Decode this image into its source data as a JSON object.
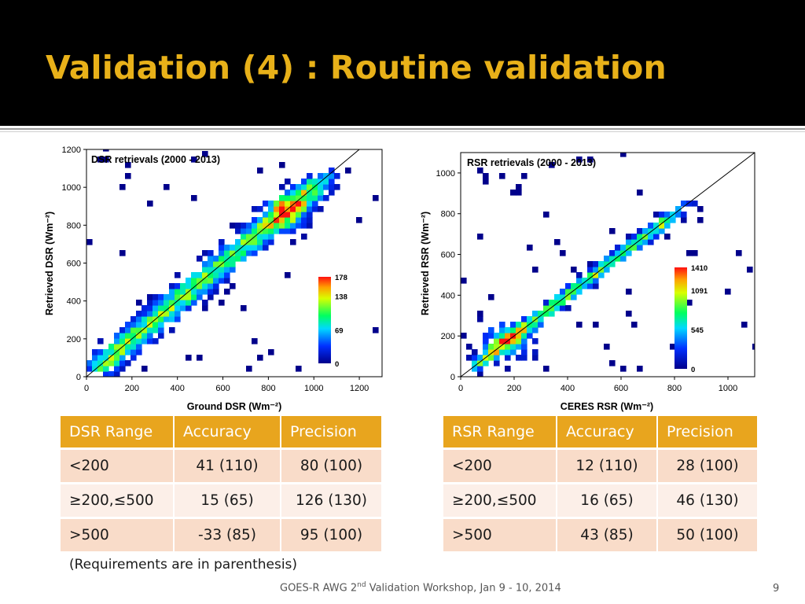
{
  "slide": {
    "title": "Validation (4) : Routine validation",
    "note": "(Requirements are in parenthesis)",
    "footer_pre": "GOES-R AWG 2",
    "footer_sup": "nd",
    "footer_post": " Validation Workshop, Jan 9 - 10, 2014",
    "page_number": "9"
  },
  "chart_data": [
    {
      "type": "heatmap",
      "title": "DSR retrievals (2000 - 2013)",
      "xlabel": "Ground DSR (Wm⁻²)",
      "ylabel": "Retrieved DSR (Wm⁻²)",
      "xlim": [
        0,
        1300
      ],
      "ylim": [
        0,
        1200
      ],
      "xticks": [
        0,
        200,
        400,
        600,
        800,
        1000,
        1200
      ],
      "yticks": [
        0,
        200,
        400,
        600,
        800,
        1000,
        1200
      ],
      "one_to_one_line": true,
      "colorbar": {
        "min": 0,
        "max": 178,
        "labels": [
          "178",
          "138",
          "69",
          "0"
        ],
        "label_values": [
          178,
          138,
          69,
          0
        ]
      },
      "density_peak": [
        880,
        870
      ]
    },
    {
      "type": "heatmap",
      "title": "RSR retrievals (2000 - 2013)",
      "xlabel": "CERES RSR (Wm⁻²)",
      "ylabel": "Retrieved RSR (Wm⁻²)",
      "xlim": [
        0,
        1100
      ],
      "ylim": [
        0,
        1100
      ],
      "xticks": [
        0,
        200,
        400,
        600,
        800,
        1000
      ],
      "yticks": [
        0,
        200,
        400,
        600,
        800,
        1000
      ],
      "one_to_one_line": true,
      "colorbar": {
        "min": 0,
        "max": 1410,
        "labels": [
          "1410",
          "1091",
          "545",
          "0"
        ],
        "label_values": [
          1410,
          1091,
          545,
          0
        ]
      },
      "density_peak": [
        180,
        180
      ]
    }
  ],
  "tables": {
    "dsr": {
      "headers": [
        "DSR Range",
        "Accuracy",
        "Precision"
      ],
      "rows": [
        [
          "<200",
          "41 (110)",
          "80 (100)"
        ],
        [
          "≥200,≤500",
          "15 (65)",
          "126 (130)"
        ],
        [
          ">500",
          "-33 (85)",
          "95 (100)"
        ]
      ]
    },
    "rsr": {
      "headers": [
        "RSR Range",
        "Accuracy",
        "Precision"
      ],
      "rows": [
        [
          "<200",
          "12 (110)",
          "28 (100)"
        ],
        [
          "≥200,≤500",
          "16 (65)",
          "46 (130)"
        ],
        [
          ">500",
          "43 (85)",
          "50 (100)"
        ]
      ]
    }
  },
  "colors": {
    "title": "#e8b119",
    "header_bg": "#000000",
    "table_header": "#e8a51e",
    "table_row_odd": "#f9dcc9",
    "table_row_even": "#fcefe8"
  }
}
